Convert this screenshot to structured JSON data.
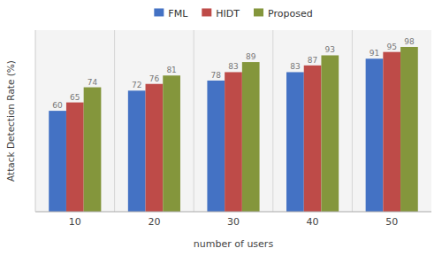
{
  "chart_data": {
    "type": "bar",
    "x_label": "number of users",
    "y_label": "Attack Detection Rate (%)",
    "categories": [
      "10",
      "20",
      "30",
      "40",
      "50"
    ],
    "series": [
      {
        "name": "FML",
        "color": "#4472C4",
        "values": [
          60,
          72,
          78,
          83,
          91
        ]
      },
      {
        "name": "HIDT",
        "color": "#BE4B48",
        "values": [
          65,
          76,
          83,
          87,
          95
        ]
      },
      {
        "name": "Proposed",
        "color": "#84963C",
        "values": [
          74,
          81,
          89,
          93,
          98
        ]
      }
    ],
    "ylim": [
      0,
      108
    ],
    "data_labels": true,
    "tick_labels": "x",
    "legend": "upper center",
    "grid": false
  }
}
